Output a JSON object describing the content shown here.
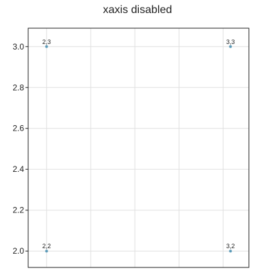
{
  "chart_data": {
    "type": "scatter",
    "title": "xaxis disabled",
    "xlabel": "",
    "ylabel": "",
    "x_axis_visible": false,
    "xlim": [
      1.9,
      3.1
    ],
    "ylim": [
      1.92,
      3.09
    ],
    "y_ticks": [
      2.0,
      2.2,
      2.4,
      2.6,
      2.8,
      3.0
    ],
    "y_tick_labels": [
      "2.0",
      "2.2",
      "2.4",
      "2.6",
      "2.8",
      "3.0"
    ],
    "x_grid": [
      2.0,
      2.24,
      2.48,
      2.72,
      2.96
    ],
    "grid": true,
    "legend": "none",
    "series": [
      {
        "points": [
          {
            "x": 2,
            "y": 3,
            "label": "2,3"
          },
          {
            "x": 3,
            "y": 3,
            "label": "3,3"
          },
          {
            "x": 2,
            "y": 2,
            "label": "2,2"
          },
          {
            "x": 3,
            "y": 2,
            "label": "3,2"
          }
        ]
      }
    ],
    "colors": {
      "marker": "#5b9ab8",
      "grid": "#e0e0e0",
      "frame": "#222222"
    }
  }
}
